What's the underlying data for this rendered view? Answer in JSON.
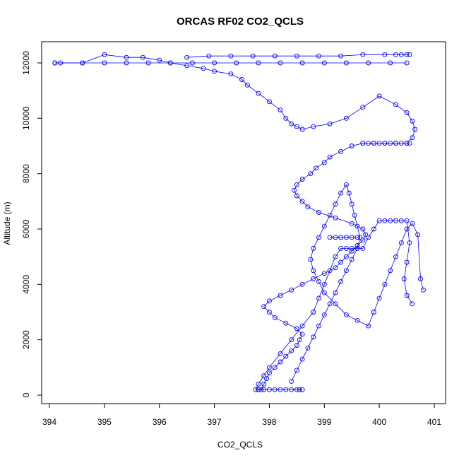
{
  "chart_data": {
    "type": "scatter",
    "title": "ORCAS RF02 CO2_QCLS",
    "xlabel": "CO2_QCLS",
    "ylabel": "Altitude (m)",
    "xlim": [
      394,
      401
    ],
    "ylim": [
      0,
      12000
    ],
    "x_ticks": [
      "394",
      "395",
      "396",
      "397",
      "398",
      "399",
      "400",
      "401"
    ],
    "y_ticks": [
      "0",
      "2000",
      "4000",
      "6000",
      "8000",
      "10000",
      "12000"
    ],
    "grid": false,
    "legend": "none",
    "point_style": "open circle, connected by line",
    "color": "#0000ff",
    "series": [
      {
        "x": [
          397.8,
          397.85,
          397.9,
          397.95,
          398.0,
          398.1,
          398.2,
          398.3,
          398.4,
          398.5,
          398.55,
          398.6,
          398.5,
          398.3,
          398.1,
          398.0,
          397.9,
          398.0,
          398.2,
          398.4,
          398.6,
          398.8,
          399.0,
          399.2,
          399.3,
          399.4,
          399.5,
          399.6,
          399.7,
          399.75,
          399.7,
          399.5,
          399.2,
          398.9,
          398.7,
          398.6,
          398.5,
          398.45,
          398.5,
          398.6,
          398.75,
          398.85,
          399.0,
          399.1,
          399.3,
          399.5,
          399.7,
          399.9,
          400.1,
          400.3,
          400.5,
          400.6,
          400.65,
          400.6,
          400.5,
          400.3,
          400.0,
          399.7,
          399.4,
          399.1,
          398.8,
          398.6,
          398.5,
          398.4,
          398.3,
          398.2,
          398.0,
          397.8,
          397.6,
          397.5,
          397.3,
          397.0,
          396.8,
          396.5,
          396.2,
          396.0,
          395.7,
          395.4,
          395.0,
          394.6,
          394.2,
          394.1
        ],
        "y": [
          200,
          200,
          400,
          600,
          800,
          1000,
          1200,
          1400,
          1600,
          1800,
          2000,
          2200,
          2400,
          2600,
          2800,
          3000,
          3200,
          3400,
          3600,
          3800,
          4000,
          4200,
          4400,
          4600,
          4800,
          5000,
          5200,
          5400,
          5600,
          5800,
          6000,
          6200,
          6400,
          6600,
          6800,
          7000,
          7200,
          7400,
          7600,
          7800,
          8000,
          8200,
          8400,
          8600,
          8800,
          9000,
          9100,
          9100,
          9100,
          9100,
          9100,
          9300,
          9600,
          9900,
          10200,
          10500,
          10800,
          10400,
          10000,
          9800,
          9700,
          9600,
          9700,
          9800,
          10000,
          10300,
          10600,
          10900,
          11200,
          11400,
          11600,
          11700,
          11800,
          11900,
          12000,
          12100,
          12200,
          12200,
          12300,
          12000,
          12000,
          12000
        ]
      },
      {
        "x": [
          398.6,
          398.55,
          398.5,
          398.4,
          398.3,
          398.2,
          398.1,
          398.0,
          397.9,
          397.8,
          397.75,
          397.8,
          397.9,
          398.0,
          398.2,
          398.4,
          398.6,
          398.8,
          398.9,
          399.0,
          399.1,
          399.2,
          399.3,
          399.4,
          399.5,
          399.6,
          399.7,
          399.8,
          399.9,
          400.0,
          400.1,
          400.2,
          400.3,
          400.4,
          400.5,
          400.55,
          400.5,
          400.45,
          400.5,
          400.6
        ],
        "y": [
          200,
          200,
          200,
          200,
          200,
          200,
          200,
          200,
          200,
          200,
          200,
          400,
          700,
          1000,
          1500,
          2000,
          2500,
          3000,
          3500,
          4000,
          4500,
          5000,
          5300,
          5300,
          5300,
          5300,
          5300,
          5700,
          6000,
          6300,
          6300,
          6300,
          6300,
          6300,
          6300,
          5500,
          4800,
          4200,
          3600,
          3300
        ]
      },
      {
        "x": [
          398.4,
          398.5,
          398.6,
          398.7,
          398.8,
          398.9,
          399.0,
          399.1,
          399.2,
          399.3,
          399.4,
          399.5,
          399.6,
          399.65,
          399.6,
          399.55,
          399.5,
          399.45,
          399.4,
          399.3,
          399.2,
          399.1,
          399.0,
          398.9,
          398.8,
          398.75,
          398.8,
          398.9,
          399.0,
          399.2,
          399.4,
          399.6,
          399.8,
          399.9,
          400.0,
          400.1,
          400.2,
          400.3,
          400.4,
          400.5,
          400.6,
          400.7,
          400.75,
          400.8
        ],
        "y": [
          500,
          900,
          1300,
          1700,
          2100,
          2500,
          2900,
          3300,
          3700,
          4100,
          4500,
          4900,
          5300,
          5700,
          6100,
          6500,
          6900,
          7300,
          7600,
          7300,
          6900,
          6500,
          6100,
          5700,
          5300,
          4900,
          4500,
          4100,
          3700,
          3300,
          2900,
          2700,
          2500,
          3000,
          3500,
          4000,
          4500,
          5000,
          5500,
          6000,
          6200,
          5800,
          4200,
          3800
        ]
      },
      {
        "x": [
          394.1,
          394.6,
          395.0,
          395.4,
          395.8,
          396.2,
          396.6,
          397.0,
          397.4,
          397.8,
          398.2,
          398.6,
          399.0,
          399.4,
          399.8,
          400.2,
          400.5
        ],
        "y": [
          12000,
          12000,
          12000,
          12000,
          12000,
          12000,
          12000,
          12000,
          12000,
          12000,
          12000,
          12000,
          12000,
          12000,
          12000,
          12000,
          12000
        ]
      },
      {
        "x": [
          396.5,
          396.9,
          397.3,
          397.7,
          398.1,
          398.5,
          398.9,
          399.3,
          399.7,
          400.1,
          400.3,
          400.4,
          400.5,
          400.55
        ],
        "y": [
          12200,
          12250,
          12250,
          12250,
          12250,
          12250,
          12250,
          12250,
          12300,
          12300,
          12300,
          12300,
          12300,
          12300
        ]
      },
      {
        "x": [
          399.7,
          399.8,
          399.9,
          400.0,
          400.1,
          400.2,
          400.3,
          400.4,
          400.5,
          400.55
        ],
        "y": [
          9100,
          9100,
          9100,
          9100,
          9100,
          9100,
          9100,
          9100,
          9100,
          9100
        ]
      },
      {
        "x": [
          399.1,
          399.2,
          399.3,
          399.4,
          399.5,
          399.6
        ],
        "y": [
          5700,
          5700,
          5700,
          5700,
          5700,
          5700
        ]
      }
    ]
  }
}
